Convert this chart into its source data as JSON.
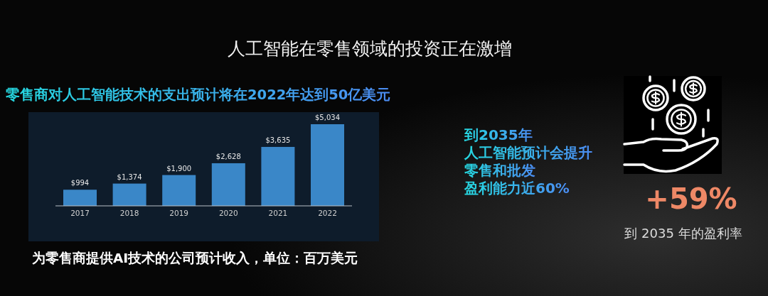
{
  "chart_data": [
    {
      "type": "bar",
      "title": "人工智能在零售领域的投资正在激增",
      "subtitle": "零售商对人工智能技术的支出预计将在2022年达到50亿美元",
      "categories": [
        "2017",
        "2018",
        "2019",
        "2020",
        "2021",
        "2022"
      ],
      "values": [
        994,
        1374,
        1900,
        2628,
        3635,
        5034
      ],
      "value_labels": [
        "$994",
        "$1,374",
        "$1,900",
        "$2,628",
        "$3,635",
        "$5,034"
      ],
      "color": "#3a87c8",
      "annotations": [
        "为零售商提供AI技术的公司预计收入，单位：百万美元"
      ]
    },
    {
      "type": "other",
      "annotations": [
        "到2035年",
        "人工智能预计会提升",
        "零售和批发",
        "盈利能力近60%",
        "+59%",
        "到 2035 年的盈利率"
      ]
    }
  ]
}
